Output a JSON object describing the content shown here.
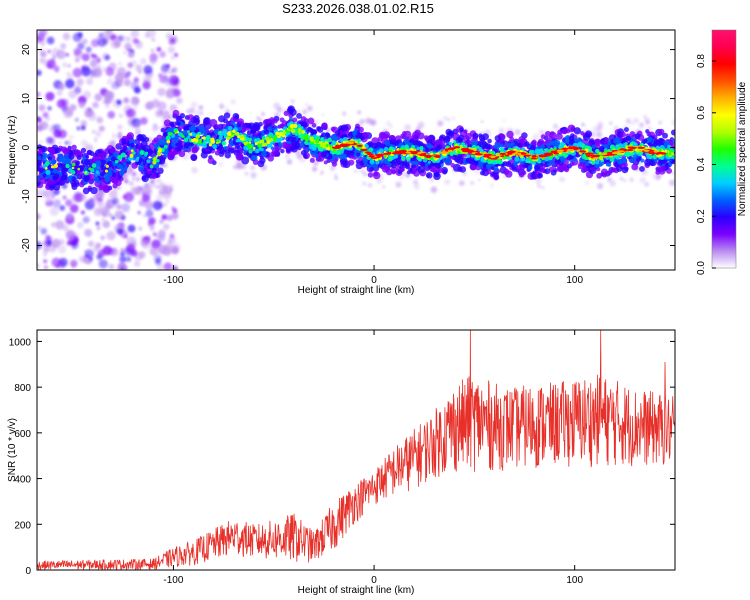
{
  "title": "S233.2026.038.01.02.R15",
  "chart_data": [
    {
      "type": "heatmap",
      "name": "spectrogram",
      "xlabel": "Height of straight line (km)",
      "ylabel": "Frequency (Hz)",
      "xlim": [
        -168,
        150
      ],
      "ylim": [
        -25,
        24
      ],
      "xticks": [
        -100,
        0,
        100
      ],
      "yticks": [
        -20,
        -10,
        0,
        10,
        20
      ],
      "xtick_labels": [
        "-100",
        "0",
        "100"
      ],
      "ytick_labels": [
        "-20",
        "-10",
        "0",
        "10",
        "20"
      ],
      "ridge": {
        "x": [
          -150,
          -140,
          -130,
          -120,
          -110,
          -100,
          -90,
          -80,
          -70,
          -60,
          -50,
          -40,
          -30,
          -20,
          -10,
          0,
          10,
          20,
          30,
          40,
          50,
          60,
          70,
          80,
          90,
          100,
          110,
          120,
          130,
          140,
          150
        ],
        "y": [
          -4,
          -5,
          -4,
          -1,
          -3,
          3,
          2,
          1,
          3,
          0,
          2,
          4,
          1,
          0,
          1,
          -2,
          -1,
          -1,
          -2,
          0,
          -1,
          -2,
          -1,
          -2,
          -1,
          0,
          -2,
          -1,
          0,
          -1,
          -1
        ]
      },
      "colorbar": {
        "label": "Normalized spectral amplitude",
        "range": [
          0.0,
          0.92
        ],
        "ticks": [
          0.0,
          0.2,
          0.4,
          0.6,
          0.8
        ],
        "tick_labels": [
          "0.0",
          "0.2",
          "0.4",
          "0.6",
          "0.8"
        ],
        "colors": [
          "#ffffff",
          "#b98cf0",
          "#7a00ff",
          "#2a00ff",
          "#0060ff",
          "#00d0ff",
          "#00ff90",
          "#20ff00",
          "#b0ff00",
          "#ffff00",
          "#ffb000",
          "#ff5000",
          "#ff0000",
          "#ff0050",
          "#ff1070"
        ]
      }
    },
    {
      "type": "line",
      "name": "snr",
      "xlabel": "Height of straight line (km)",
      "ylabel": "SNR (10 * v/v)",
      "xlim": [
        -168,
        150
      ],
      "ylim": [
        0,
        1050
      ],
      "xticks": [
        -100,
        0,
        100
      ],
      "yticks": [
        0,
        200,
        400,
        600,
        800,
        1000
      ],
      "xtick_labels": [
        "-100",
        "0",
        "100"
      ],
      "ytick_labels": [
        "0",
        "200",
        "400",
        "600",
        "800",
        "1000"
      ],
      "line_color": "#e8302a",
      "envelope": {
        "x": [
          -168,
          -110,
          -100,
          -90,
          -80,
          -70,
          -60,
          -50,
          -40,
          -30,
          -20,
          -10,
          0,
          10,
          20,
          30,
          40,
          50,
          60,
          70,
          80,
          90,
          100,
          110,
          120,
          130,
          140,
          150
        ],
        "low": [
          0,
          0,
          10,
          20,
          40,
          60,
          50,
          40,
          30,
          30,
          80,
          200,
          280,
          320,
          350,
          400,
          420,
          430,
          430,
          440,
          440,
          450,
          450,
          450,
          450,
          450,
          450,
          450
        ],
        "high": [
          40,
          50,
          100,
          130,
          180,
          230,
          200,
          220,
          250,
          170,
          300,
          380,
          440,
          540,
          620,
          700,
          820,
          860,
          820,
          800,
          820,
          820,
          840,
          860,
          840,
          800,
          780,
          760
        ]
      },
      "peaks": [
        {
          "x": 48,
          "y": 1050
        },
        {
          "x": 113,
          "y": 1050
        },
        {
          "x": 145,
          "y": 910
        }
      ]
    }
  ]
}
